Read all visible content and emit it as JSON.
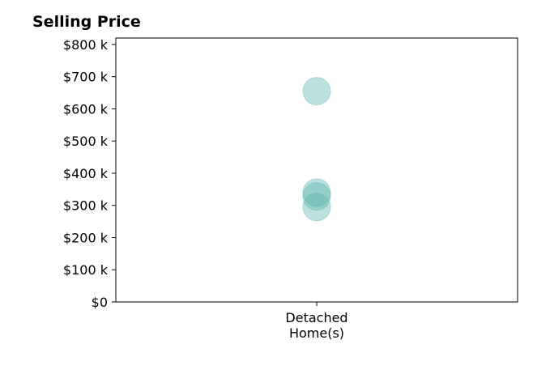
{
  "chart_data": {
    "type": "scatter",
    "title": "Selling Price",
    "xlabel": "",
    "ylabel": "",
    "categories": [
      [
        "Detached",
        "Home(s)"
      ]
    ],
    "ylim": [
      0,
      820000
    ],
    "y_ticks": [
      0,
      100000,
      200000,
      300000,
      400000,
      500000,
      600000,
      700000,
      800000
    ],
    "y_tick_labels": [
      "$0",
      "$100 k",
      "$200 k",
      "$300 k",
      "$400 k",
      "$500 k",
      "$600 k",
      "$700 k",
      "$800 k"
    ],
    "series": [
      {
        "category": "Detached Home(s)",
        "values": [
          655000,
          340000,
          328000,
          295000
        ]
      }
    ],
    "grid": false,
    "legend": "none",
    "marker_color": "#5bb5ad",
    "marker_edge_color": "#5bb5ad",
    "marker_opacity": 0.4
  }
}
